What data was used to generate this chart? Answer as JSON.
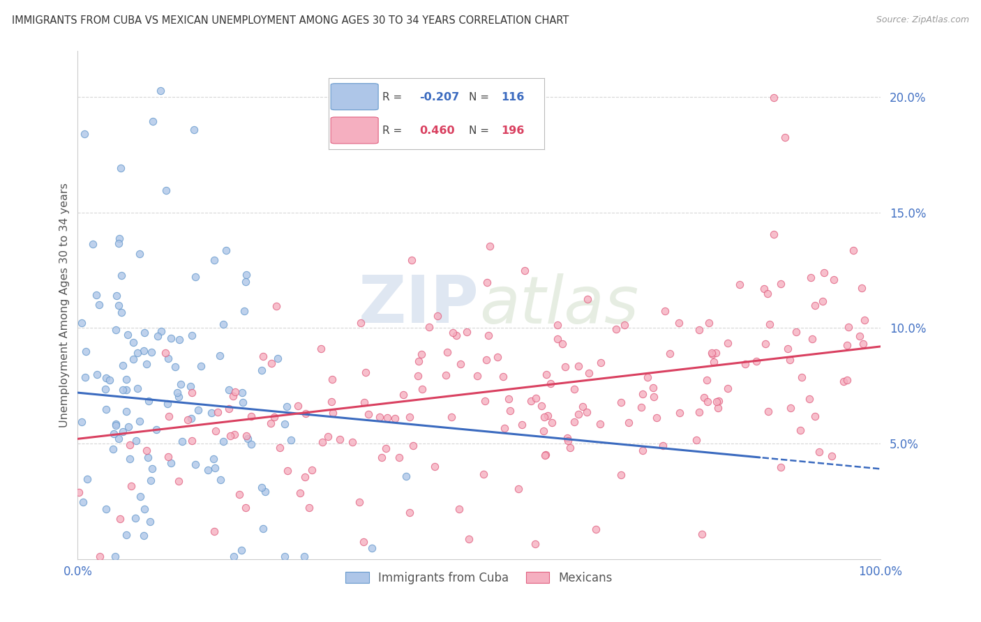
{
  "title": "IMMIGRANTS FROM CUBA VS MEXICAN UNEMPLOYMENT AMONG AGES 30 TO 34 YEARS CORRELATION CHART",
  "source": "Source: ZipAtlas.com",
  "ylabel": "Unemployment Among Ages 30 to 34 years",
  "yticks": [
    "5.0%",
    "10.0%",
    "15.0%",
    "20.0%"
  ],
  "ytick_vals": [
    0.05,
    0.1,
    0.15,
    0.2
  ],
  "xlim": [
    0.0,
    1.0
  ],
  "ylim": [
    0.0,
    0.22
  ],
  "cuba_color": "#aec6e8",
  "cuba_edge_color": "#6699cc",
  "mexico_color": "#f5afc0",
  "mexico_edge_color": "#e06080",
  "cuba_R": -0.207,
  "cuba_N": 116,
  "mexico_R": 0.46,
  "mexico_N": 196,
  "cuba_line_color": "#3a6abf",
  "mexico_line_color": "#d94060",
  "watermark_zip": "ZIP",
  "watermark_atlas": "atlas",
  "legend_label_cuba": "Immigrants from Cuba",
  "legend_label_mexico": "Mexicans",
  "background_color": "#ffffff",
  "grid_color": "#cccccc",
  "title_color": "#333333",
  "axis_label_color": "#4472C4",
  "scatter_alpha": 0.8,
  "scatter_size": 55
}
